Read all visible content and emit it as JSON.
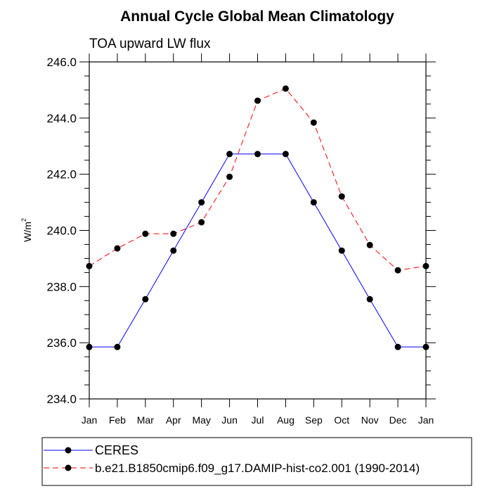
{
  "chart_data": {
    "type": "line",
    "title": "Annual Cycle Global Mean Climatology",
    "subtitle": "TOA upward LW flux",
    "xlabel": "",
    "ylabel": "W/m",
    "ylabel_sup": "2",
    "categories": [
      "Jan",
      "Feb",
      "Mar",
      "Apr",
      "May",
      "Jun",
      "Jul",
      "Aug",
      "Sep",
      "Oct",
      "Nov",
      "Dec",
      "Jan"
    ],
    "ylim": [
      234.0,
      246.0
    ],
    "yticks": [
      "234.0",
      "236.0",
      "238.0",
      "240.0",
      "242.0",
      "244.0",
      "246.0"
    ],
    "grid": false,
    "legend_placement": "bottom",
    "series": [
      {
        "name": "CERES",
        "color": "#0000ff",
        "dash": "solid",
        "values": [
          235.85,
          235.85,
          237.55,
          239.28,
          241.0,
          242.72,
          242.72,
          242.72,
          241.0,
          239.28,
          237.55,
          235.85,
          235.85
        ]
      },
      {
        "name": "b.e21.B1850cmip6.f09_g17.DAMIP-hist-co2.001 (1990-2014)",
        "color": "#ff0000",
        "dash": "dashed",
        "values": [
          238.73,
          239.36,
          239.88,
          239.88,
          240.29,
          241.91,
          244.62,
          245.05,
          243.84,
          241.21,
          239.48,
          238.58,
          238.73
        ]
      }
    ]
  }
}
